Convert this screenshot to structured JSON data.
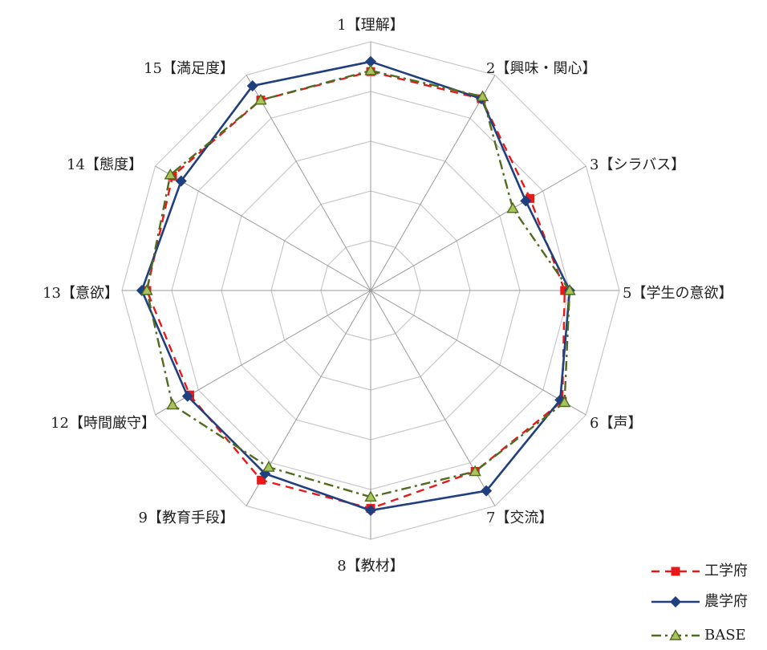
{
  "chart_data": {
    "type": "radar",
    "title": "",
    "axes": [
      "1【理解】",
      "2【興味・関心】",
      "3【シラバス】",
      "5【学生の意欲】",
      "6【声】",
      "7【交流】",
      "8【教材】",
      "9【教育手段】",
      "12【時間厳守】",
      "13【意欲】",
      "14【態度】",
      "15【満足度】"
    ],
    "rlim": [
      0,
      5
    ],
    "rings": 5,
    "grid": true,
    "legend_position": "bottom-right",
    "series": [
      {
        "name": "工学府",
        "color": "#e81919",
        "style": "dashed",
        "marker": "square",
        "values": [
          4.4,
          4.45,
          3.7,
          3.9,
          4.45,
          4.2,
          4.38,
          4.4,
          4.2,
          4.5,
          4.6,
          4.42
        ]
      },
      {
        "name": "農学府",
        "color": "#1f3f7f",
        "style": "solid",
        "marker": "diamond",
        "values": [
          4.6,
          4.45,
          3.6,
          4.0,
          4.4,
          4.65,
          4.42,
          4.25,
          4.25,
          4.6,
          4.4,
          4.75
        ]
      },
      {
        "name": "BASE",
        "color": "#4f6b1f",
        "style": "dashdot",
        "marker": "triangle",
        "values": [
          4.42,
          4.5,
          3.3,
          4.0,
          4.5,
          4.2,
          4.15,
          4.1,
          4.6,
          4.5,
          4.65,
          4.42
        ]
      }
    ]
  }
}
